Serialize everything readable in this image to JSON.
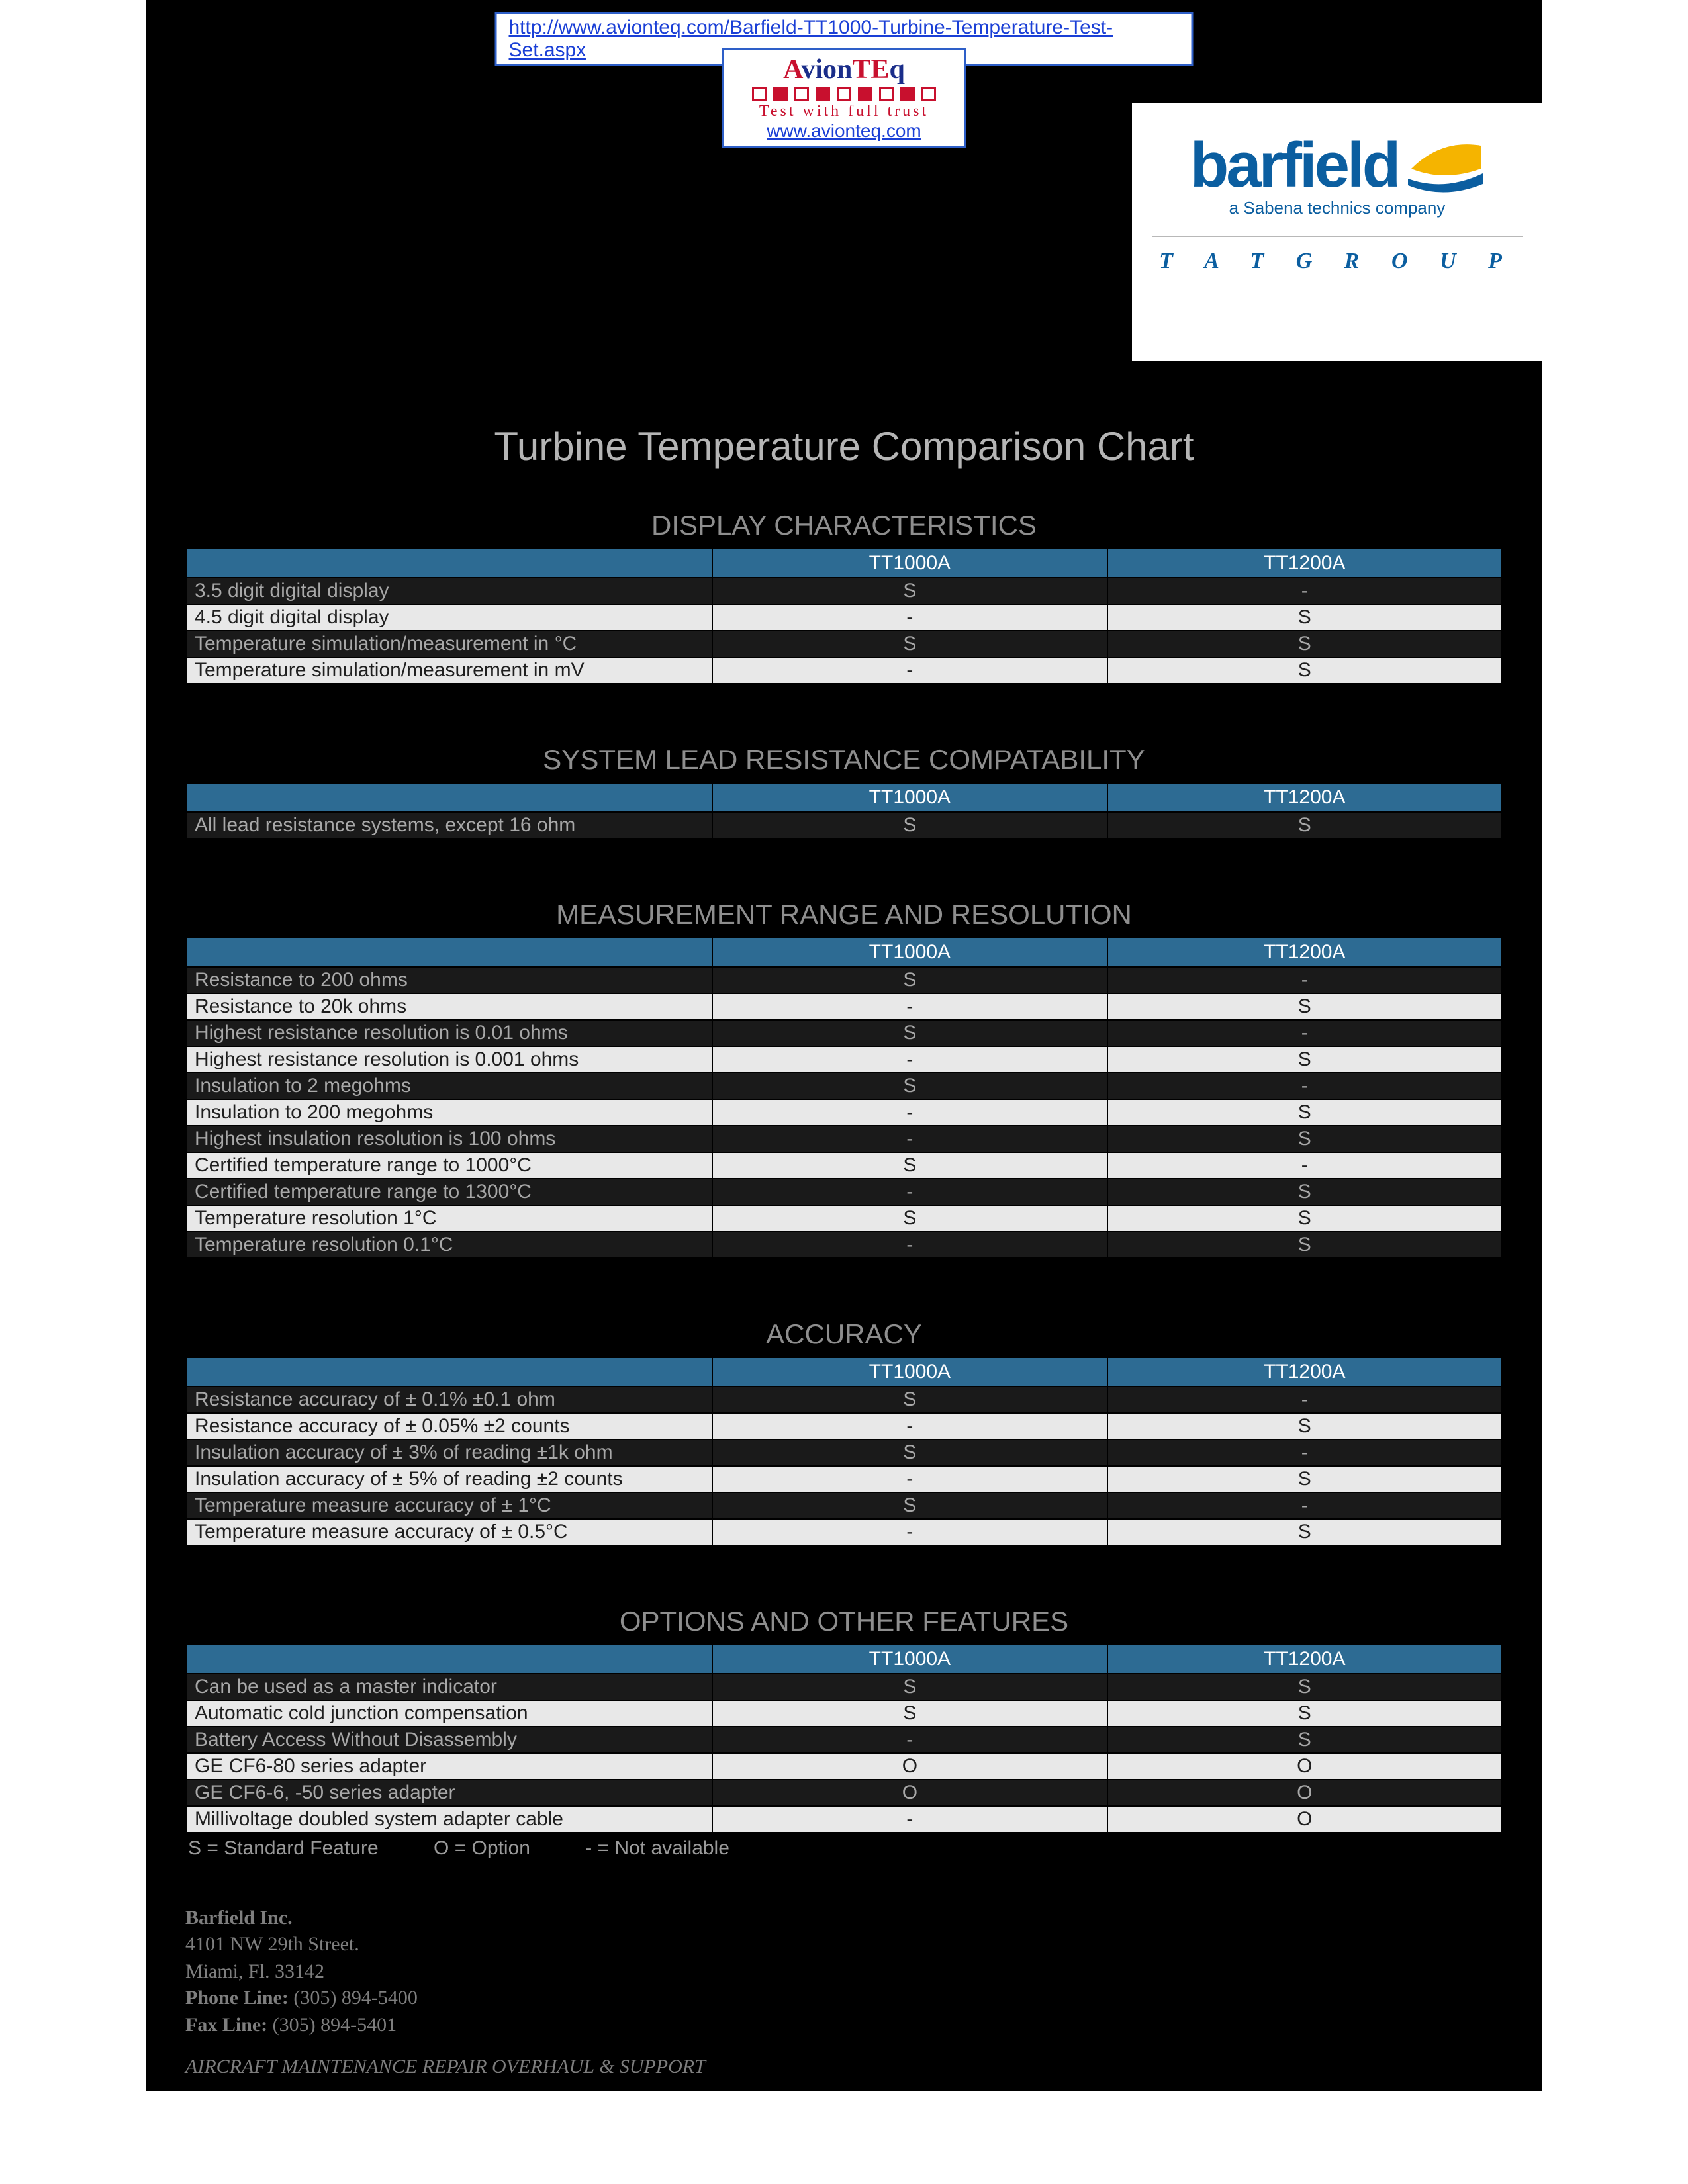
{
  "colors": {
    "page_bg": "#ffffff",
    "black_bg": "#000000",
    "header_bg": "#2d6b93",
    "header_text": "#ffffff",
    "dark_row_bg": "#1a1a1a",
    "dark_row_text": "#a8a8a8",
    "light_row_bg": "#e8e8e8",
    "light_row_text": "#1f1f1f",
    "title_gray": "#b5b5b5",
    "section_gray": "#8e8e8e",
    "link_blue": "#1a3fd6",
    "barfield_blue": "#0b5ea0",
    "avionteq_red": "#c8102e",
    "swoosh_yellow": "#f5b400"
  },
  "top_url": "http://www.avionteq.com/Barfield-TT1000-Turbine-Temperature-Test-Set.aspx",
  "avionteq": {
    "name_parts": [
      "A",
      "vion",
      "TE",
      "q"
    ],
    "tagline": "Test with full trust",
    "site": "www.avionteq.com"
  },
  "barfield": {
    "word": "barfield",
    "subtitle": "a Sabena technics company",
    "group": "T A T   G R O U P"
  },
  "main_title": "Turbine Temperature Comparison Chart",
  "columns": [
    "TT1000A",
    "TT1200A"
  ],
  "sections": [
    {
      "title": "DISPLAY CHARACTERISTICS",
      "rows": [
        {
          "label": "3.5 digit digital display",
          "vals": [
            "S",
            "-"
          ]
        },
        {
          "label": "4.5 digit digital display",
          "vals": [
            "-",
            "S"
          ]
        },
        {
          "label": "Temperature simulation/measurement in °C",
          "vals": [
            "S",
            "S"
          ]
        },
        {
          "label": "Temperature simulation/measurement in mV",
          "vals": [
            "-",
            "S"
          ]
        }
      ]
    },
    {
      "title": "SYSTEM LEAD RESISTANCE COMPATABILITY",
      "rows": [
        {
          "label": "All lead resistance systems, except 16 ohm",
          "vals": [
            "S",
            "S"
          ]
        }
      ]
    },
    {
      "title": "MEASUREMENT RANGE AND RESOLUTION",
      "rows": [
        {
          "label": "Resistance to 200 ohms",
          "vals": [
            "S",
            "-"
          ]
        },
        {
          "label": "Resistance to 20k ohms",
          "vals": [
            "-",
            "S"
          ]
        },
        {
          "label": "Highest resistance resolution is 0.01 ohms",
          "vals": [
            "S",
            "-"
          ]
        },
        {
          "label": "Highest resistance resolution is 0.001 ohms",
          "vals": [
            "-",
            "S"
          ]
        },
        {
          "label": "Insulation to 2 megohms",
          "vals": [
            "S",
            "-"
          ]
        },
        {
          "label": "Insulation to 200 megohms",
          "vals": [
            "-",
            "S"
          ]
        },
        {
          "label": "Highest insulation resolution is 100 ohms",
          "vals": [
            "-",
            "S"
          ]
        },
        {
          "label": "Certified temperature range to 1000°C",
          "vals": [
            "S",
            "-"
          ]
        },
        {
          "label": "Certified temperature range to 1300°C",
          "vals": [
            "-",
            "S"
          ]
        },
        {
          "label": "Temperature resolution 1°C",
          "vals": [
            "S",
            "S"
          ]
        },
        {
          "label": "Temperature resolution 0.1°C",
          "vals": [
            "-",
            "S"
          ]
        }
      ]
    },
    {
      "title": "ACCURACY",
      "rows": [
        {
          "label": "Resistance accuracy of ± 0.1% ±0.1 ohm",
          "vals": [
            "S",
            "-"
          ]
        },
        {
          "label": "Resistance accuracy of ± 0.05% ±2 counts",
          "vals": [
            "-",
            "S"
          ]
        },
        {
          "label": "Insulation accuracy of ± 3% of reading ±1k ohm",
          "vals": [
            "S",
            "-"
          ]
        },
        {
          "label": "Insulation accuracy of ± 5% of reading ±2 counts",
          "vals": [
            "-",
            "S"
          ]
        },
        {
          "label": "Temperature measure accuracy of ± 1°C",
          "vals": [
            "S",
            "-"
          ]
        },
        {
          "label": "Temperature measure accuracy of ± 0.5°C",
          "vals": [
            "-",
            "S"
          ]
        }
      ]
    },
    {
      "title": "OPTIONS AND OTHER FEATURES",
      "rows": [
        {
          "label": "Can be used as a master indicator",
          "vals": [
            "S",
            "S"
          ]
        },
        {
          "label": "Automatic cold junction compensation",
          "vals": [
            "S",
            "S"
          ]
        },
        {
          "label": "Battery Access Without Disassembly",
          "vals": [
            "-",
            "S"
          ]
        },
        {
          "label": "GE CF6-80 series adapter",
          "vals": [
            "O",
            "O"
          ]
        },
        {
          "label": "GE CF6-6, -50 series adapter",
          "vals": [
            "O",
            "O"
          ]
        },
        {
          "label": "Millivoltage doubled system adapter cable",
          "vals": [
            "-",
            "O"
          ]
        }
      ],
      "legend": "S = Standard Feature          O = Option          - = Not available"
    }
  ],
  "footer": {
    "company": "Barfield Inc.",
    "street": "4101 NW 29th Street.",
    "citystate": "Miami, Fl. 33142",
    "phone_label": "Phone Line:",
    "phone": "(305) 894-5400",
    "fax_label": "Fax Line:",
    "fax": "(305) 894-5401",
    "tag": "AIRCRAFT MAINTENANCE REPAIR OVERHAUL & SUPPORT"
  }
}
